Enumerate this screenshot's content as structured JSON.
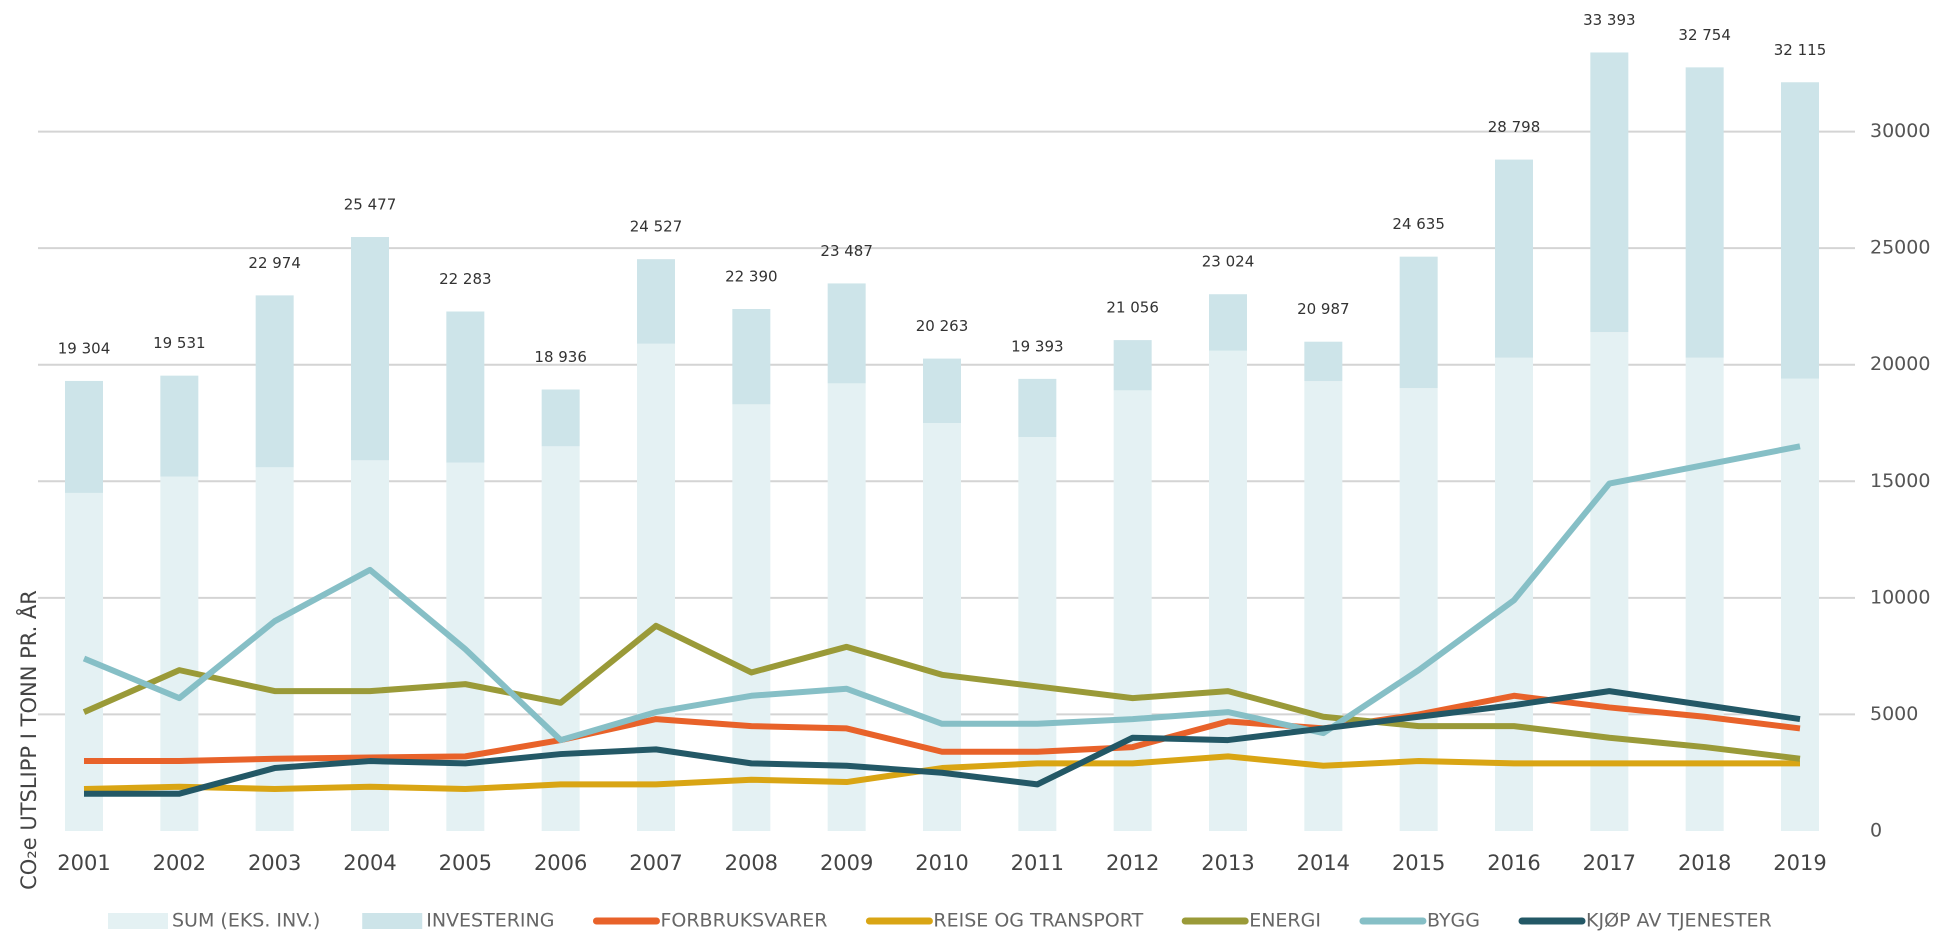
{
  "chart_data": {
    "type": "bar_line",
    "y_axis_label": "CO₂e UTSLIPP I TONN PR. ÅR",
    "categories": [
      "2001",
      "2002",
      "2003",
      "2004",
      "2005",
      "2006",
      "2007",
      "2008",
      "2009",
      "2010",
      "2011",
      "2012",
      "2013",
      "2014",
      "2015",
      "2016",
      "2017",
      "2018",
      "2019"
    ],
    "bar_totals": [
      "19 304",
      "19 531",
      "22 974",
      "25 477",
      "22 283",
      "18 936",
      "24 527",
      "22 390",
      "23 487",
      "20 263",
      "19 393",
      "21 056",
      "23 024",
      "20 987",
      "24 635",
      "28 798",
      "33 393",
      "32 754",
      "32 115"
    ],
    "stacked_series": [
      {
        "name": "SUM (EKS. INV.)",
        "color": "#e4f1f3",
        "values": [
          14500,
          15200,
          15600,
          15900,
          15800,
          16500,
          20900,
          18300,
          19200,
          17500,
          16900,
          18900,
          20600,
          19300,
          19000,
          20300,
          21400,
          20300,
          19400
        ]
      },
      {
        "name": "INVESTERING",
        "color": "#cde4e9",
        "values": [
          4804,
          4331,
          7374,
          9577,
          6483,
          2436,
          3627,
          4090,
          4287,
          2763,
          2493,
          2156,
          2424,
          1687,
          5635,
          8498,
          11993,
          12454,
          12715
        ]
      }
    ],
    "series": [
      {
        "name": "FORBRUKSVARER",
        "color": "#e8622a",
        "values": [
          3000,
          3000,
          3100,
          3150,
          3200,
          3900,
          4800,
          4500,
          4400,
          3400,
          3400,
          3600,
          4700,
          4400,
          5000,
          5800,
          5300,
          4900,
          4400
        ]
      },
      {
        "name": "REISE OG TRANSPORT",
        "color": "#d9a514",
        "values": [
          1800,
          1900,
          1800,
          1900,
          1800,
          2000,
          2000,
          2200,
          2100,
          2700,
          2900,
          2900,
          3200,
          2800,
          3000,
          2900,
          2900,
          2900,
          2900
        ]
      },
      {
        "name": "ENERGI",
        "color": "#9a9a38",
        "values": [
          5100,
          6900,
          6000,
          6000,
          6300,
          5500,
          8800,
          6800,
          7900,
          6700,
          6200,
          5700,
          6000,
          4900,
          4500,
          4500,
          4000,
          3600,
          3100
        ]
      },
      {
        "name": "BYGG",
        "color": "#86bfc6",
        "values": [
          7400,
          5700,
          9000,
          11200,
          7800,
          3900,
          5100,
          5800,
          6100,
          4600,
          4600,
          4800,
          5100,
          4200,
          6900,
          9900,
          14900,
          15700,
          16500
        ]
      },
      {
        "name": "KJØP AV TJENESTER",
        "color": "#235866",
        "values": [
          1600,
          1600,
          2700,
          3000,
          2900,
          3300,
          3500,
          2900,
          2800,
          2500,
          2000,
          4000,
          3900,
          4400,
          4900,
          5400,
          6000,
          5400,
          4800
        ]
      }
    ],
    "ylim": [
      0,
      35000
    ],
    "yticks": [
      0,
      5000,
      10000,
      15000,
      20000,
      25000,
      30000
    ],
    "grid": true
  }
}
